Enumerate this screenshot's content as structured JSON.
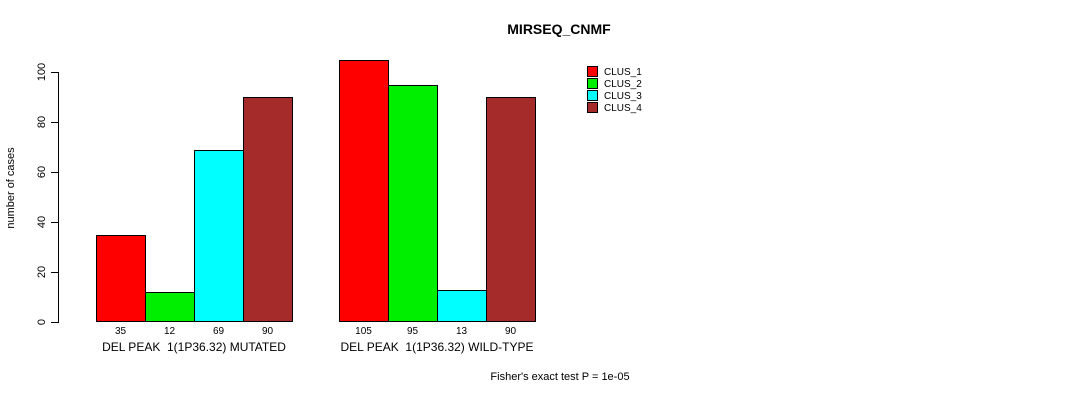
{
  "chart_data": {
    "type": "bar",
    "title": "MIRSEQ_CNMF",
    "ylabel": "number of cases",
    "ylim": [
      0,
      105
    ],
    "yticks": [
      0,
      20,
      40,
      60,
      80,
      100
    ],
    "grid": false,
    "legend_position": "right-top",
    "categories": [
      "DEL PEAK  1(1P36.32) MUTATED",
      "DEL PEAK  1(1P36.32) WILD-TYPE"
    ],
    "series": [
      {
        "name": "CLUS_1",
        "color": "#FF0000",
        "values": [
          35,
          105
        ]
      },
      {
        "name": "CLUS_2",
        "color": "#00EE00",
        "values": [
          12,
          95
        ]
      },
      {
        "name": "CLUS_3",
        "color": "#00FFFF",
        "values": [
          69,
          13
        ]
      },
      {
        "name": "CLUS_4",
        "color": "#A52A2A",
        "values": [
          90,
          90
        ]
      }
    ],
    "bar_value_labels": [
      [
        "35",
        "12",
        "69",
        "90"
      ],
      [
        "105",
        "95",
        "13",
        "90"
      ]
    ],
    "footnote": "Fisher's exact test P = 1e-05",
    "axis_color": "#000000",
    "background_color": "#FFFFFF"
  }
}
